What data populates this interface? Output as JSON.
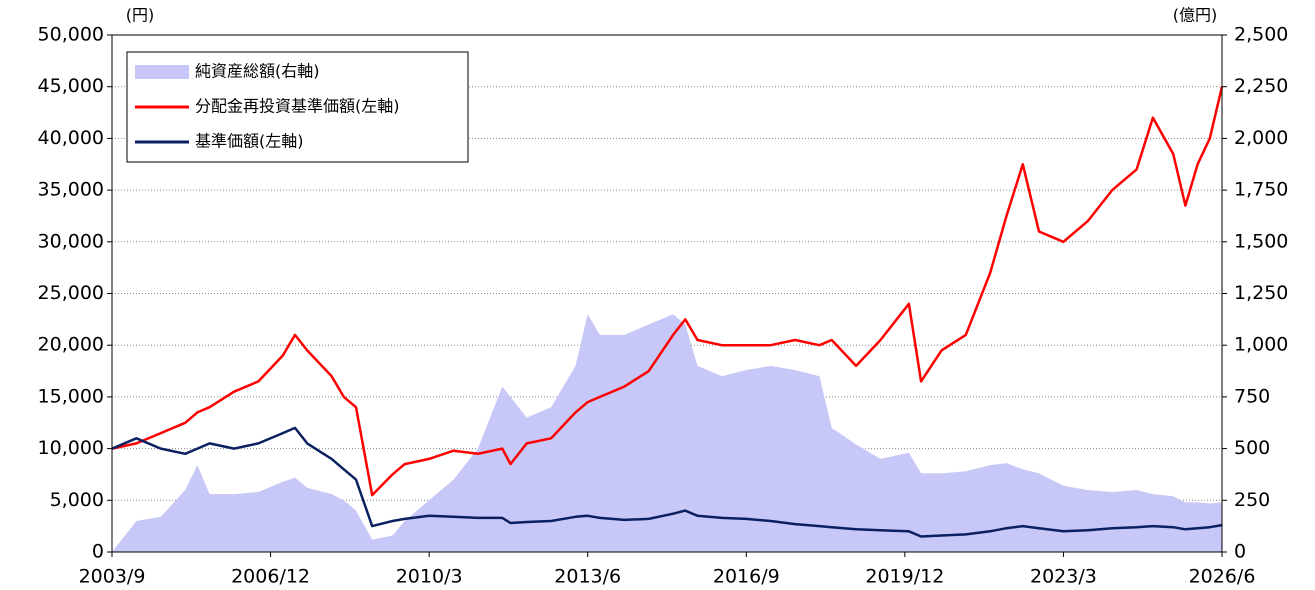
{
  "chart_data": {
    "type": "line",
    "y_label": "(円)",
    "y2_label": "(億円)",
    "x": [
      "2003/9",
      "2004/3",
      "2004/9",
      "2005/3",
      "2005/6",
      "2005/9",
      "2006/3",
      "2006/9",
      "2007/3",
      "2007/6",
      "2007/9",
      "2008/3",
      "2008/6",
      "2008/9",
      "2009/1",
      "2009/6",
      "2009/9",
      "2010/3",
      "2010/9",
      "2011/3",
      "2011/9",
      "2011/11",
      "2012/3",
      "2012/9",
      "2013/3",
      "2013/6",
      "2013/9",
      "2014/3",
      "2014/9",
      "2015/3",
      "2015/6",
      "2015/9",
      "2016/3",
      "2016/9",
      "2017/3",
      "2017/9",
      "2018/3",
      "2018/6",
      "2018/12",
      "2019/6",
      "2020/1",
      "2020/4",
      "2020/9",
      "2021/3",
      "2021/9",
      "2022/1",
      "2022/5",
      "2022/9",
      "2023/3",
      "2023/9",
      "2024/3",
      "2024/9",
      "2025/1",
      "2025/6",
      "2025/9",
      "2025/12",
      "2026/3",
      "2026/6"
    ],
    "xlim": [
      "2003/9",
      "2026/6"
    ],
    "xticks": [
      "2003/9",
      "2006/12",
      "2010/3",
      "2013/6",
      "2016/9",
      "2019/12",
      "2023/3",
      "2026/6"
    ],
    "ylim": [
      0,
      50000
    ],
    "yticks": [
      0,
      {
        "value": 5000,
        "label": "5,000"
      },
      {
        "value": 10000,
        "label": "10,000"
      },
      {
        "value": 15000,
        "label": "15,000"
      },
      {
        "value": 20000,
        "label": "20,000"
      },
      {
        "value": 25000,
        "label": "25,000"
      },
      {
        "value": 30000,
        "label": "30,000"
      },
      {
        "value": 35000,
        "label": "35,000"
      },
      {
        "value": 40000,
        "label": "40,000"
      },
      {
        "value": 45000,
        "label": "45,000"
      },
      {
        "value": 50000,
        "label": "50,000"
      }
    ],
    "y2lim": [
      0,
      2500
    ],
    "y2ticks": [
      0,
      250,
      500,
      750,
      {
        "value": 1000,
        "label": "1,000"
      },
      {
        "value": 1250,
        "label": "1,250"
      },
      {
        "value": 1500,
        "label": "1,500"
      },
      {
        "value": 1750,
        "label": "1,750"
      },
      {
        "value": 2000,
        "label": "2,000"
      },
      {
        "value": 2250,
        "label": "2,250"
      },
      {
        "value": 2500,
        "label": "2,500"
      }
    ],
    "grid": true,
    "legend": "upper left",
    "series": [
      {
        "name": "純資産総額(右軸)",
        "type": "area",
        "axis": "y2",
        "color": "#c8c8f8",
        "values": [
          0,
          150,
          170,
          300,
          420,
          280,
          280,
          290,
          340,
          360,
          310,
          280,
          250,
          200,
          60,
          80,
          150,
          250,
          350,
          500,
          800,
          750,
          650,
          700,
          900,
          1150,
          1050,
          1050,
          1100,
          1150,
          1100,
          900,
          850,
          880,
          900,
          880,
          850,
          600,
          520,
          450,
          480,
          380,
          380,
          390,
          420,
          430,
          400,
          380,
          320,
          300,
          290,
          300,
          280,
          270,
          240,
          240,
          235,
          240
        ]
      },
      {
        "name": "分配金再投資基準価額(左軸)",
        "type": "line",
        "color": "#ff0000",
        "values": [
          10000,
          10500,
          11500,
          12500,
          13500,
          14000,
          15500,
          16500,
          19000,
          21000,
          19500,
          17000,
          15000,
          14000,
          5500,
          7500,
          8500,
          9000,
          9800,
          9500,
          10000,
          8500,
          10500,
          11000,
          13500,
          14500,
          15000,
          16000,
          17500,
          21000,
          22500,
          20500,
          20000,
          20000,
          20000,
          20500,
          20000,
          20500,
          18000,
          20500,
          24000,
          16500,
          19500,
          21000,
          27000,
          32500,
          37500,
          31000,
          30000,
          32000,
          35000,
          37000,
          42000,
          38500,
          33500,
          37500,
          40000,
          45000
        ]
      },
      {
        "name": "基準価額(左軸)",
        "type": "line",
        "color": "#0a2060",
        "values": [
          10000,
          11000,
          10000,
          9500,
          10000,
          10500,
          10000,
          10500,
          11500,
          12000,
          10500,
          9000,
          8000,
          7000,
          2500,
          3000,
          3200,
          3500,
          3400,
          3300,
          3300,
          2800,
          2900,
          3000,
          3400,
          3500,
          3300,
          3100,
          3200,
          3700,
          4000,
          3500,
          3300,
          3200,
          3000,
          2700,
          2500,
          2400,
          2200,
          2100,
          2000,
          1500,
          1600,
          1700,
          2000,
          2300,
          2500,
          2300,
          2000,
          2100,
          2300,
          2400,
          2500,
          2400,
          2200,
          2300,
          2400,
          2600
        ]
      }
    ]
  }
}
